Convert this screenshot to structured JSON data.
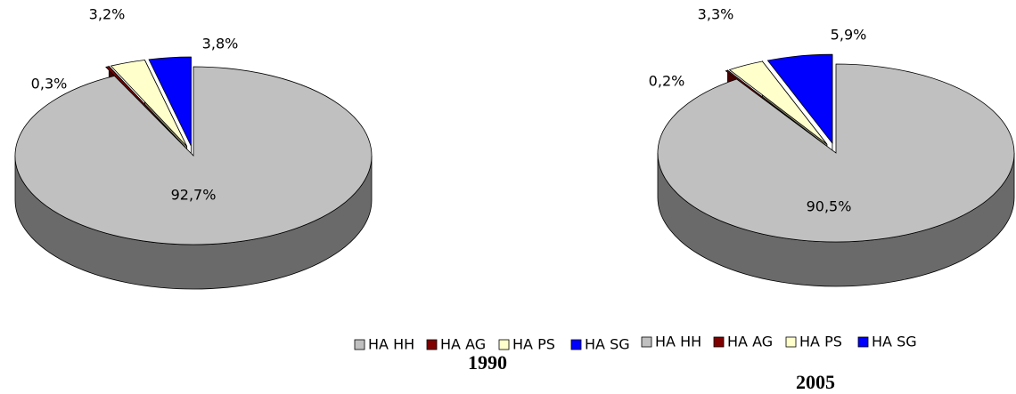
{
  "chart_data": [
    {
      "type": "pie",
      "title": "1990",
      "categories": [
        "HA HH",
        "HA AG",
        "HA PS",
        "HA SG"
      ],
      "values": [
        92.7,
        0.3,
        3.2,
        3.8
      ],
      "value_labels": [
        "92,7%",
        "0,3%",
        "3,2%",
        "3,8%"
      ],
      "colors": [
        "#c0c0c0",
        "#800000",
        "#ffffcc",
        "#0000ff"
      ]
    },
    {
      "type": "pie",
      "title": "2005",
      "categories": [
        "HA HH",
        "HA AG",
        "HA PS",
        "HA SG"
      ],
      "values": [
        90.5,
        0.2,
        3.3,
        5.9
      ],
      "value_labels": [
        "90,5%",
        "0,2%",
        "3,3%",
        "5,9%"
      ],
      "colors": [
        "#c0c0c0",
        "#800000",
        "#ffffcc",
        "#0000ff"
      ]
    }
  ]
}
